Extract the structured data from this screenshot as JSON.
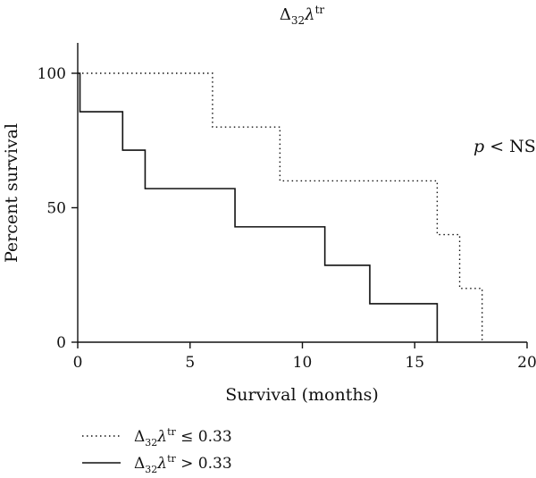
{
  "chart_data": {
    "type": "line",
    "subtype": "kaplan-meier-step",
    "title": {
      "base": "Δ",
      "sub": "32",
      "var": "λ",
      "sup": "tr"
    },
    "xlabel": "Survival (months)",
    "ylabel": "Percent survival",
    "xlim": [
      0,
      20
    ],
    "ylim": [
      0,
      100
    ],
    "xticks": [
      "0",
      "5",
      "10",
      "15",
      "20"
    ],
    "yticks": [
      "0",
      "50",
      "100"
    ],
    "annotation": {
      "italic": "p",
      "rest": " < NS"
    },
    "grid": false,
    "legend_position": "bottom-left",
    "series": [
      {
        "name": {
          "base": "Δ",
          "sub": "32",
          "var": "λ",
          "sup": "tr",
          "rest": " ≤ 0.33"
        },
        "style": "dotted",
        "color": "#111111",
        "steps": [
          [
            0,
            100
          ],
          [
            6,
            80
          ],
          [
            9,
            60
          ],
          [
            16,
            40
          ],
          [
            17,
            20
          ],
          [
            18,
            0
          ]
        ]
      },
      {
        "name": {
          "base": "Δ",
          "sub": "32",
          "var": "λ",
          "sup": "tr",
          "rest": " > 0.33"
        },
        "style": "solid",
        "color": "#111111",
        "steps": [
          [
            0,
            100
          ],
          [
            0.1,
            85.7
          ],
          [
            2,
            71.4
          ],
          [
            3,
            57.1
          ],
          [
            7,
            42.9
          ],
          [
            11,
            28.6
          ],
          [
            13,
            14.3
          ],
          [
            16,
            0
          ]
        ]
      }
    ]
  }
}
